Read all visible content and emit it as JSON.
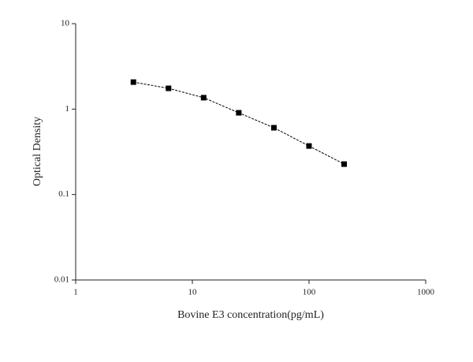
{
  "chart_data": {
    "type": "line",
    "x_label": "Bovine E3 concentration(pg/mL)",
    "y_label": "Optical Density",
    "x": [
      3.125,
      6.25,
      12.5,
      25,
      50,
      100,
      200
    ],
    "values": [
      2.07,
      1.75,
      1.36,
      0.905,
      0.605,
      0.37,
      0.227
    ],
    "color": "#000000",
    "x_log": true,
    "y_log": true,
    "xlim": [
      1,
      1000
    ],
    "xticks": [
      1,
      10,
      100,
      1000
    ],
    "ylim": [
      0.01,
      10
    ],
    "yticks": [
      0.01,
      0.1,
      1,
      10
    ],
    "grid": false
  }
}
